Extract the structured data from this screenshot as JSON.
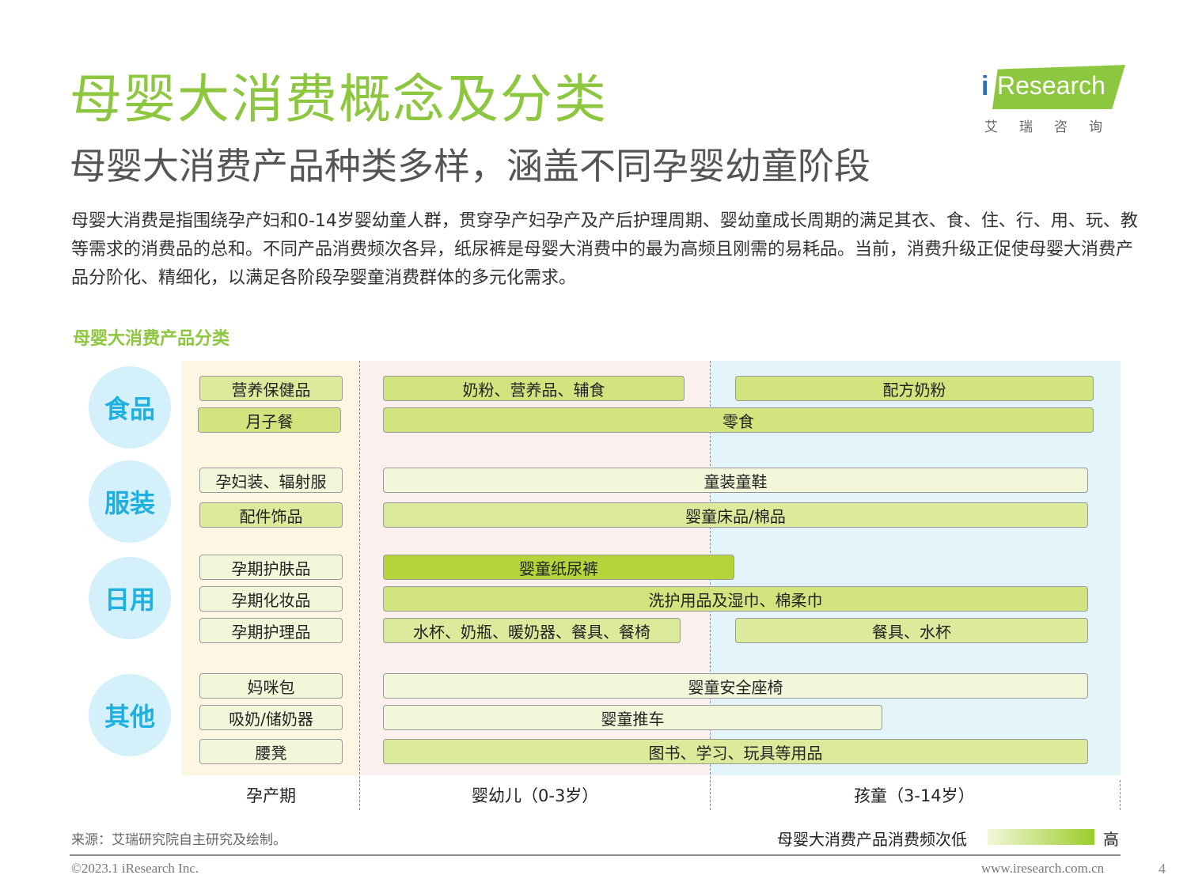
{
  "header": {
    "title": "母婴大消费概念及分类",
    "subtitle": "母婴大消费产品种类多样，涵盖不同孕婴幼童阶段",
    "description": "母婴大消费是指围绕孕产妇和0-14岁婴幼童人群，贯穿孕产妇孕产及产后护理周期、婴幼童成长周期的满足其衣、食、住、行、用、玩、教等需求的消费品的总和。不同产品消费频次各异，纸尿裤是母婴大消费中的最为高频且刚需的易耗品。当前，消费升级正促使母婴大消费产品分阶化、精细化，以满足各阶段孕婴童消费群体的多元化需求。"
  },
  "logo": {
    "prefix": "i",
    "name": "Research",
    "cn": "艾瑞咨询"
  },
  "diagram": {
    "title": "母婴大消费产品分类",
    "categories": [
      "食品",
      "服装",
      "日用",
      "其他"
    ],
    "phases": [
      "孕产期",
      "婴幼儿（0-3岁）",
      "孩童（3-14岁）"
    ],
    "bars": {
      "b1": "营养保健品",
      "b2": "奶粉、营养品、辅食",
      "b3": "配方奶粉",
      "b4": "月子餐",
      "b5": "零食",
      "b6": "孕妇装、辐射服",
      "b7": "童装童鞋",
      "b8": "配件饰品",
      "b9": "婴童床品/棉品",
      "b10": "孕期护肤品",
      "b11": "婴童纸尿裤",
      "b12": "孕期化妆品",
      "b13": "洗护用品及湿巾、棉柔巾",
      "b14": "孕期护理品",
      "b15": "水杯、奶瓶、暖奶器、餐具、餐椅",
      "b16": "餐具、水杯",
      "b17": "妈咪包",
      "b18": "婴童安全座椅",
      "b19": "吸奶/储奶器",
      "b20": "婴童推车",
      "b21": "腰凳",
      "b22": "图书、学习、玩具等用品"
    },
    "legend": {
      "label": "母婴大消费产品消费频次低",
      "high": "高",
      "low_color": "#f3f7d9",
      "high_color": "#9ccc2a"
    }
  },
  "footer": {
    "source": "来源：艾瑞研究院自主研究及绘制。",
    "copyright": "©2023.1 iResearch Inc.",
    "website": "www.iresearch.com.cn",
    "page": "4"
  }
}
